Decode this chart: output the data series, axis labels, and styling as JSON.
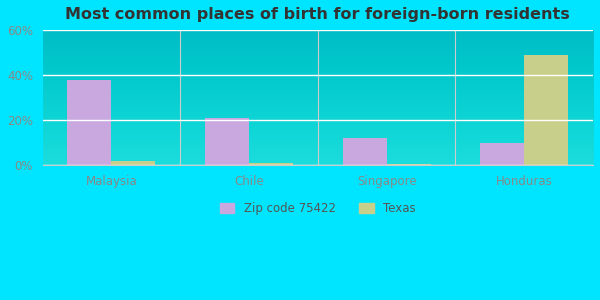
{
  "title": "Most common places of birth for foreign-born residents",
  "categories": [
    "Malaysia",
    "Chile",
    "Singapore",
    "Honduras"
  ],
  "zip_values": [
    38,
    21,
    12,
    10
  ],
  "texas_values": [
    2,
    1,
    0.5,
    49
  ],
  "zip_color": "#c9a8e0",
  "texas_color": "#c8cf8a",
  "ylim": [
    0,
    60
  ],
  "yticks": [
    0,
    20,
    40,
    60
  ],
  "ytick_labels": [
    "0%",
    "20%",
    "40%",
    "60%"
  ],
  "legend_zip_label": "Zip code 75422",
  "legend_texas_label": "Texas",
  "bg_color_outer": "#00e5ff",
  "bg_color_plot_top": "#f5fdf5",
  "bg_color_plot_bottom": "#deeedd",
  "title_fontsize": 11.5,
  "bar_width": 0.32,
  "tick_label_color": "#888888",
  "axis_label_color": "#888888"
}
